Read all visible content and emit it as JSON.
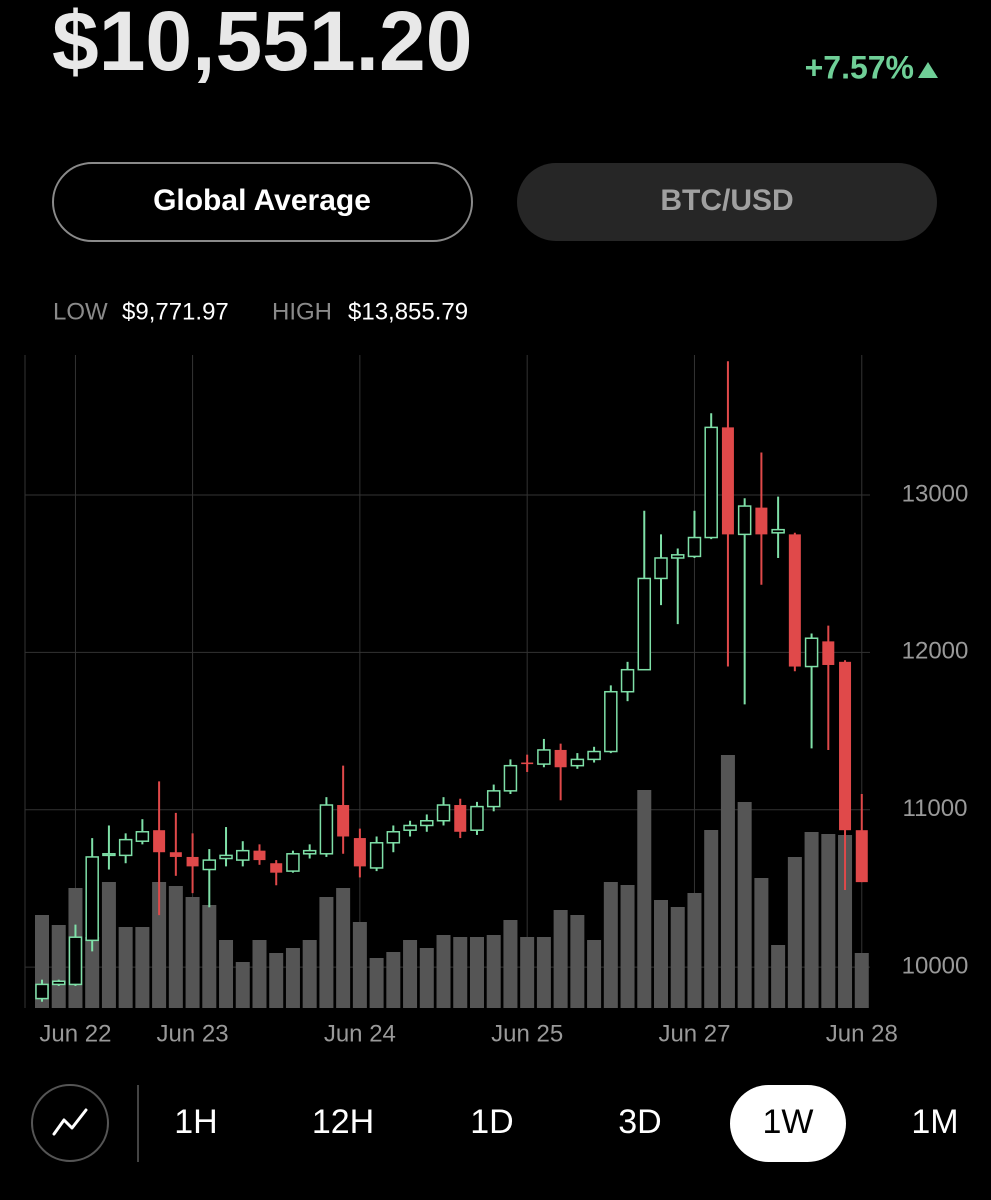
{
  "header": {
    "price": "$10,551.20",
    "change": "+7.57%"
  },
  "tabs": [
    "Global Average",
    "BTC/USD"
  ],
  "range": {
    "low_label": "LOW",
    "low": "$9,771.97",
    "high_label": "HIGH",
    "high": "$13,855.79"
  },
  "chart_data": {
    "type": "candlestick",
    "categories": [
      null,
      null,
      "Jun 22",
      null,
      null,
      null,
      null,
      null,
      null,
      "Jun 23",
      null,
      null,
      null,
      null,
      null,
      null,
      null,
      null,
      null,
      "Jun 24",
      null,
      null,
      null,
      null,
      null,
      null,
      null,
      null,
      null,
      "Jun 25",
      null,
      null,
      null,
      null,
      null,
      null,
      null,
      null,
      null,
      "Jun 27",
      null,
      null,
      null,
      null,
      null,
      null,
      null,
      null,
      null,
      "Jun 28"
    ],
    "open": [
      9800,
      9890,
      9890,
      10170,
      10710,
      10710,
      10800,
      10870,
      10730,
      10700,
      10620,
      10690,
      10680,
      10740,
      10660,
      10610,
      10720,
      10720,
      11030,
      10820,
      10630,
      10790,
      10870,
      10900,
      10930,
      11030,
      10870,
      11020,
      11120,
      11300,
      11290,
      11380,
      11280,
      11320,
      11370,
      11750,
      11890,
      12470,
      12600,
      12610,
      12730,
      13430,
      12750,
      12920,
      12760,
      12750,
      11910,
      12070,
      11940,
      10870
    ],
    "high": [
      9920,
      9920,
      10270,
      10820,
      10900,
      10850,
      10940,
      11180,
      10980,
      10850,
      10750,
      10890,
      10800,
      10780,
      10680,
      10740,
      10780,
      11080,
      11280,
      10880,
      10830,
      10900,
      10930,
      10970,
      11080,
      11070,
      11050,
      11160,
      11320,
      11350,
      11450,
      11420,
      11360,
      11400,
      11790,
      11940,
      12900,
      12750,
      12660,
      12900,
      13520,
      13850,
      12980,
      13270,
      12990,
      12760,
      12120,
      12170,
      11950,
      11100
    ],
    "low": [
      9780,
      9880,
      9880,
      10100,
      10620,
      10660,
      10780,
      10330,
      10580,
      10470,
      10380,
      10640,
      10640,
      10650,
      10520,
      10600,
      10690,
      10700,
      10720,
      10570,
      10610,
      10730,
      10830,
      10860,
      10900,
      10820,
      10840,
      10990,
      11100,
      11240,
      11270,
      11060,
      11260,
      11300,
      11360,
      11690,
      11890,
      12300,
      12180,
      12600,
      12720,
      11910,
      11670,
      12430,
      12600,
      11880,
      11390,
      11380,
      10490,
      10540
    ],
    "close": [
      9890,
      9910,
      10190,
      10700,
      10720,
      10810,
      10860,
      10730,
      10700,
      10640,
      10680,
      10710,
      10740,
      10680,
      10600,
      10720,
      10740,
      11030,
      10830,
      10640,
      10790,
      10860,
      10900,
      10930,
      11030,
      10860,
      11020,
      11120,
      11280,
      11290,
      11380,
      11270,
      11320,
      11370,
      11750,
      11890,
      12470,
      12600,
      12620,
      12730,
      13430,
      12750,
      12930,
      12750,
      12780,
      11910,
      12090,
      11920,
      10870,
      10540
    ],
    "volume": [
      93,
      83,
      120,
      71,
      126,
      81,
      81,
      126,
      122,
      111,
      103,
      68,
      46,
      68,
      55,
      60,
      68,
      111,
      120,
      86,
      50,
      56,
      68,
      60,
      73,
      71,
      71,
      73,
      88,
      71,
      71,
      98,
      93,
      68,
      126,
      123,
      218,
      108,
      101,
      115,
      178,
      253,
      206,
      130,
      63,
      151,
      176,
      174,
      173,
      55
    ],
    "volume_lim": [
      0,
      653
    ],
    "ylim": [
      9740,
      13890
    ],
    "yticks": [
      10000,
      11000,
      12000,
      13000
    ],
    "grid": true,
    "up_color": "#7fe0a8",
    "down_color": "#e0494a",
    "volume_color": "#555555"
  },
  "timeframes": [
    "1H",
    "12H",
    "1D",
    "3D",
    "1W",
    "1M"
  ],
  "selected_timeframe": 4
}
